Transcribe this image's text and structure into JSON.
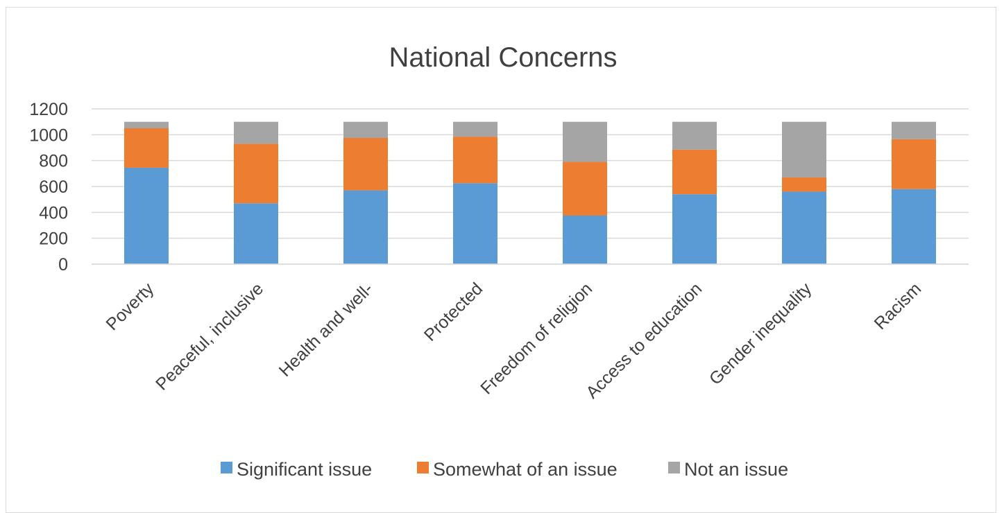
{
  "chart_data": {
    "type": "bar",
    "stacked": true,
    "title": "National Concerns",
    "xlabel": "",
    "ylabel": "",
    "ylim": [
      0,
      1200
    ],
    "yticks": [
      0,
      200,
      400,
      600,
      800,
      1000,
      1200
    ],
    "grid": true,
    "legend_position": "bottom",
    "categories": [
      "Poverty",
      "Peaceful, inclusive",
      "Health and well-",
      "Protected",
      "Freedom of religion",
      "Access to education",
      "Gender inequality",
      "Racism"
    ],
    "series": [
      {
        "name": "Significant issue",
        "color": "#5b9bd5",
        "values": [
          745,
          470,
          570,
          625,
          375,
          540,
          560,
          580
        ]
      },
      {
        "name": "Somewhat of an issue",
        "color": "#ed7d31",
        "values": [
          305,
          460,
          405,
          360,
          415,
          345,
          110,
          385
        ]
      },
      {
        "name": "Not an issue",
        "color": "#a5a5a5",
        "values": [
          50,
          170,
          125,
          115,
          310,
          215,
          430,
          135
        ]
      }
    ]
  }
}
